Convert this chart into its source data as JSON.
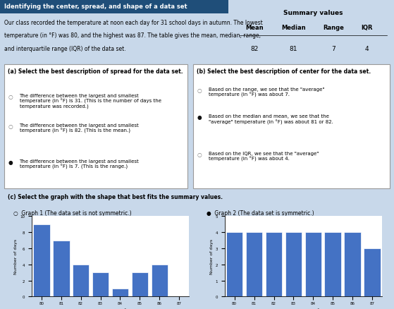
{
  "title_main": "Identifying the center, spread, and shape of a data set",
  "subtitle1": "Our class recorded the temperature at noon each day for 31 school days in autumn. The lowest",
  "subtitle2": "temperature (in °F) was 80, and the highest was 87. The table gives the mean, median, range,",
  "subtitle3": "and interquartile range (IQR) of the data set.",
  "summary_title": "Summary values",
  "summary_headers": [
    "Mean",
    "Median",
    "Range",
    "IQR"
  ],
  "summary_values": [
    "82",
    "81",
    "7",
    "4"
  ],
  "part_a_title": "(a) Select the best description of spread for the data set.",
  "part_a_options": [
    "The difference between the largest and smallest\ntemperature (in °F) is 31. (This is the number of days the\ntemperature was recorded.)",
    "The difference between the largest and smallest\ntemperature (in °F) is 82. (This is the mean.)",
    "The difference between the largest and smallest\ntemperature (in °F) is 7. (This is the range.)"
  ],
  "part_a_selected": 2,
  "part_b_title": "(b) Select the best description of center for the data set.",
  "part_b_options": [
    "Based on the range, we see that the \"average\"\ntemperature (in °F) was about 7.",
    "Based on the median and mean, we see that the\n\"average\" temperature (in °F) was about 81 or 82.",
    "Based on the IQR, we see that the \"average\"\ntemperature (in °F) was about 4."
  ],
  "part_b_selected": 1,
  "part_c_title": "(c) Select the graph with the shape that best fits the summary values.",
  "graph1_title": "Graph 1 (The data set is not symmetric.)",
  "graph2_title": "Graph 2 (The data set is symmetric.)",
  "graph1_selected": false,
  "graph2_selected": true,
  "temperatures": [
    80,
    81,
    82,
    83,
    84,
    85,
    86,
    87
  ],
  "graph1_values": [
    9,
    7,
    4,
    3,
    1,
    3,
    4,
    0
  ],
  "graph2_values": [
    4,
    4,
    4,
    4,
    4,
    4,
    4,
    3
  ],
  "bar_color": "#4472c4",
  "bg_color": "#c8d8ea",
  "table_bg": "#b8cede",
  "border_color": "#999999",
  "xlabel": "Temperature (°F)",
  "ylabel": "Number of days",
  "title_bar_color": "#1f4e79",
  "title_text_color": "#ffffff"
}
